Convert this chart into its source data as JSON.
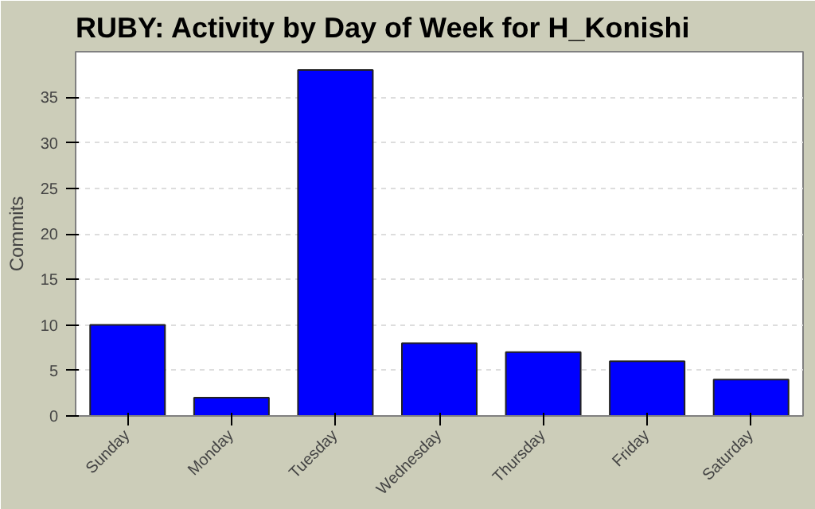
{
  "chart_data": {
    "type": "bar",
    "title": "RUBY: Activity by Day of Week for H_Konishi",
    "ylabel": "Commits",
    "categories": [
      "Sunday",
      "Monday",
      "Tuesday",
      "Wednesday",
      "Thursday",
      "Friday",
      "Saturday"
    ],
    "values": [
      10,
      2,
      38,
      8,
      7,
      6,
      4
    ],
    "color": "#0000ff",
    "ylim": [
      0,
      40
    ],
    "yticks": [
      0,
      5,
      10,
      15,
      20,
      25,
      30,
      35
    ],
    "grid": "y"
  }
}
